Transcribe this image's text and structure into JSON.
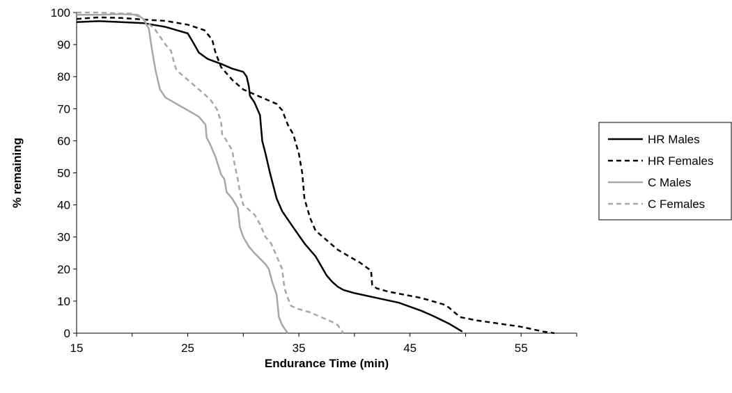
{
  "chart_data": {
    "type": "line",
    "title": "",
    "xlabel": "Endurance Time (min)",
    "ylabel": "% remaining",
    "xlim": [
      15,
      60
    ],
    "ylim": [
      0,
      100
    ],
    "x_ticks": [
      "15",
      "25",
      "35",
      "45",
      "55"
    ],
    "x_tick_values": [
      15,
      25,
      35,
      45,
      55
    ],
    "y_ticks": [
      "0",
      "10",
      "20",
      "30",
      "40",
      "50",
      "60",
      "70",
      "80",
      "90",
      "100"
    ],
    "y_tick_values": [
      0,
      10,
      20,
      30,
      40,
      50,
      60,
      70,
      80,
      90,
      100
    ],
    "grid": false,
    "legend_position": "right",
    "series": [
      {
        "name": "HR Males",
        "color": "#000000",
        "dash": "solid",
        "points": [
          [
            15,
            97
          ],
          [
            17,
            97.3
          ],
          [
            19,
            97
          ],
          [
            21,
            96.7
          ],
          [
            23,
            95.5
          ],
          [
            25,
            93.5
          ],
          [
            25.6,
            90
          ],
          [
            26,
            87.5
          ],
          [
            26.8,
            85.5
          ],
          [
            28,
            84
          ],
          [
            29,
            82.5
          ],
          [
            30,
            81.5
          ],
          [
            30.3,
            80
          ],
          [
            30.5,
            77
          ],
          [
            30.6,
            74
          ],
          [
            31,
            72
          ],
          [
            31.5,
            68
          ],
          [
            31.7,
            60
          ],
          [
            32,
            56
          ],
          [
            32.4,
            50
          ],
          [
            32.7,
            46
          ],
          [
            33,
            42
          ],
          [
            33.5,
            38
          ],
          [
            34.5,
            33
          ],
          [
            35.5,
            28
          ],
          [
            36.5,
            24
          ],
          [
            37.5,
            18
          ],
          [
            38,
            16
          ],
          [
            38.5,
            14.5
          ],
          [
            39,
            13.5
          ],
          [
            40,
            12.5
          ],
          [
            42,
            11
          ],
          [
            44,
            9.5
          ],
          [
            46,
            7
          ],
          [
            47,
            5.5
          ],
          [
            48.5,
            3
          ],
          [
            49.7,
            0.5
          ]
        ]
      },
      {
        "name": "HR Females",
        "color": "#000000",
        "dash": "dashed",
        "points": [
          [
            15,
            98
          ],
          [
            17,
            98.5
          ],
          [
            19,
            98.3
          ],
          [
            21,
            97.8
          ],
          [
            23,
            97.4
          ],
          [
            25,
            96.2
          ],
          [
            26.5,
            94.5
          ],
          [
            27.2,
            91.5
          ],
          [
            27.5,
            87.5
          ],
          [
            28,
            83
          ],
          [
            29,
            79
          ],
          [
            30,
            76
          ],
          [
            31,
            74.5
          ],
          [
            32,
            73
          ],
          [
            33,
            71.5
          ],
          [
            33.5,
            69.5
          ],
          [
            34,
            65
          ],
          [
            34.5,
            62
          ],
          [
            35,
            56
          ],
          [
            35.3,
            50
          ],
          [
            35.5,
            42
          ],
          [
            36,
            36
          ],
          [
            36.5,
            32
          ],
          [
            37.5,
            29
          ],
          [
            38.5,
            26
          ],
          [
            39.5,
            24
          ],
          [
            40.5,
            22
          ],
          [
            41.5,
            19.5
          ],
          [
            41.6,
            15
          ],
          [
            42,
            14
          ],
          [
            43,
            13
          ],
          [
            44.5,
            12
          ],
          [
            46,
            11
          ],
          [
            47,
            10
          ],
          [
            48,
            9
          ],
          [
            48.5,
            8
          ],
          [
            49.5,
            5
          ],
          [
            51,
            4
          ],
          [
            53,
            3
          ],
          [
            55,
            2
          ],
          [
            57,
            0.5
          ],
          [
            58,
            0
          ]
        ]
      },
      {
        "name": "C Males",
        "color": "#a6a6a6",
        "dash": "solid",
        "points": [
          [
            15,
            99.3
          ],
          [
            17,
            99.3
          ],
          [
            19,
            99.5
          ],
          [
            20.5,
            99.3
          ],
          [
            21,
            98
          ],
          [
            21.5,
            95
          ],
          [
            21.8,
            88
          ],
          [
            22.1,
            82
          ],
          [
            22.5,
            76
          ],
          [
            23,
            73.5
          ],
          [
            24,
            71.5
          ],
          [
            25,
            69.5
          ],
          [
            26,
            67.5
          ],
          [
            26.6,
            65
          ],
          [
            26.7,
            61
          ],
          [
            27,
            59
          ],
          [
            27.5,
            55
          ],
          [
            28,
            49.5
          ],
          [
            28.3,
            48
          ],
          [
            28.5,
            44
          ],
          [
            29,
            42
          ],
          [
            29.5,
            39
          ],
          [
            29.7,
            33
          ],
          [
            30,
            30
          ],
          [
            30.5,
            27
          ],
          [
            31,
            25
          ],
          [
            32,
            21.5
          ],
          [
            32.3,
            20
          ],
          [
            32.6,
            16
          ],
          [
            33,
            12
          ],
          [
            33.2,
            5
          ],
          [
            33.5,
            2.5
          ],
          [
            34,
            0
          ]
        ]
      },
      {
        "name": "C Females",
        "color": "#a6a6a6",
        "dash": "dashed",
        "points": [
          [
            15,
            100
          ],
          [
            17,
            100
          ],
          [
            19,
            99.7
          ],
          [
            20,
            99.7
          ],
          [
            21,
            98
          ],
          [
            22,
            95
          ],
          [
            22.5,
            92.5
          ],
          [
            23,
            90
          ],
          [
            23.5,
            88
          ],
          [
            23.8,
            84
          ],
          [
            24,
            82
          ],
          [
            25,
            79
          ],
          [
            26,
            76
          ],
          [
            27,
            73
          ],
          [
            27.6,
            70
          ],
          [
            28,
            66
          ],
          [
            28.1,
            62
          ],
          [
            28.5,
            60
          ],
          [
            29,
            57
          ],
          [
            29.2,
            53
          ],
          [
            29.5,
            48
          ],
          [
            29.7,
            44
          ],
          [
            30,
            40
          ],
          [
            31,
            37
          ],
          [
            31.5,
            34
          ],
          [
            32,
            30
          ],
          [
            32.5,
            28
          ],
          [
            33,
            24
          ],
          [
            33.5,
            20
          ],
          [
            33.7,
            14
          ],
          [
            34,
            11
          ],
          [
            34.3,
            8.5
          ],
          [
            35,
            7.5
          ],
          [
            36,
            6.5
          ],
          [
            37,
            5
          ],
          [
            38,
            3.5
          ],
          [
            38.5,
            2.5
          ],
          [
            39,
            0
          ]
        ]
      }
    ]
  }
}
